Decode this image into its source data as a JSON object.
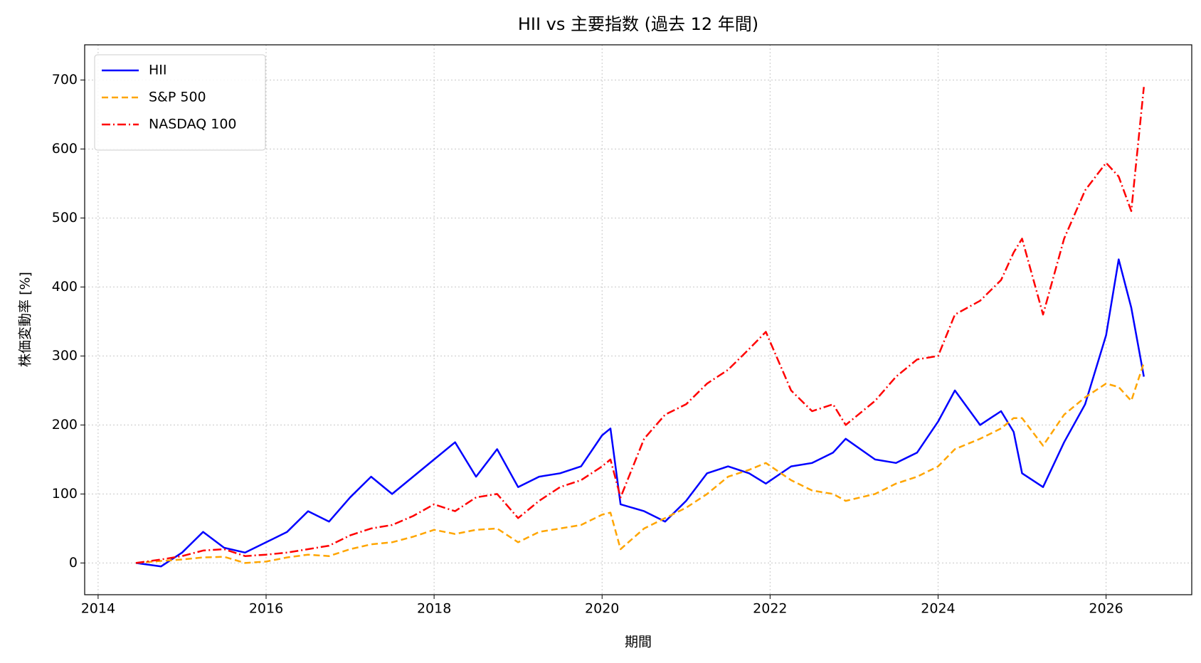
{
  "chart_data": {
    "type": "line",
    "title": "HII vs 主要指数 (過去 12 年間)",
    "x_label": "期間",
    "y_label": "株価変動率 [%]",
    "x": [
      2014.45,
      2014.75,
      2015.0,
      2015.25,
      2015.5,
      2015.75,
      2016.0,
      2016.25,
      2016.5,
      2016.75,
      2017.0,
      2017.25,
      2017.5,
      2017.75,
      2018.0,
      2018.25,
      2018.5,
      2018.75,
      2019.0,
      2019.25,
      2019.5,
      2019.75,
      2020.0,
      2020.1,
      2020.22,
      2020.5,
      2020.75,
      2021.0,
      2021.25,
      2021.5,
      2021.75,
      2021.95,
      2022.25,
      2022.5,
      2022.75,
      2022.9,
      2023.25,
      2023.5,
      2023.75,
      2024.0,
      2024.2,
      2024.5,
      2024.75,
      2024.9,
      2025.0,
      2025.25,
      2025.5,
      2025.75,
      2026.0,
      2026.15,
      2026.3,
      2026.45
    ],
    "series": [
      {
        "name": "HII",
        "color": "#0000ff",
        "style": "solid",
        "values": [
          0,
          -5,
          15,
          45,
          22,
          15,
          30,
          45,
          75,
          60,
          95,
          125,
          100,
          125,
          150,
          175,
          125,
          165,
          110,
          125,
          130,
          140,
          185,
          195,
          85,
          75,
          60,
          90,
          130,
          140,
          130,
          115,
          140,
          145,
          160,
          180,
          150,
          145,
          160,
          205,
          250,
          200,
          220,
          190,
          130,
          110,
          175,
          230,
          330,
          440,
          370,
          270
        ]
      },
      {
        "name": "S&P 500",
        "color": "#ffa500",
        "style": "dashed",
        "values": [
          0,
          3,
          5,
          8,
          9,
          0,
          2,
          8,
          12,
          10,
          20,
          27,
          30,
          38,
          48,
          42,
          48,
          50,
          30,
          45,
          50,
          55,
          70,
          73,
          20,
          50,
          65,
          80,
          100,
          125,
          135,
          145,
          120,
          105,
          100,
          90,
          100,
          115,
          125,
          140,
          165,
          180,
          195,
          210,
          210,
          170,
          215,
          240,
          260,
          255,
          235,
          290
        ]
      },
      {
        "name": "NASDAQ 100",
        "color": "#ff0000",
        "style": "dashdot",
        "values": [
          0,
          5,
          10,
          18,
          20,
          10,
          12,
          15,
          20,
          25,
          40,
          50,
          55,
          68,
          85,
          75,
          95,
          100,
          65,
          90,
          110,
          120,
          140,
          150,
          95,
          180,
          215,
          230,
          260,
          280,
          310,
          335,
          250,
          220,
          230,
          200,
          235,
          270,
          295,
          300,
          360,
          380,
          410,
          450,
          470,
          360,
          470,
          540,
          580,
          560,
          510,
          690
        ]
      }
    ],
    "xlim": [
      2013.84,
      2027.02
    ],
    "xticks": [
      2014,
      2016,
      2018,
      2020,
      2022,
      2024,
      2026
    ],
    "ylim": [
      -46,
      751
    ],
    "yticks": [
      0,
      100,
      200,
      300,
      400,
      500,
      600,
      700
    ],
    "grid": true,
    "legend": "upper left"
  }
}
